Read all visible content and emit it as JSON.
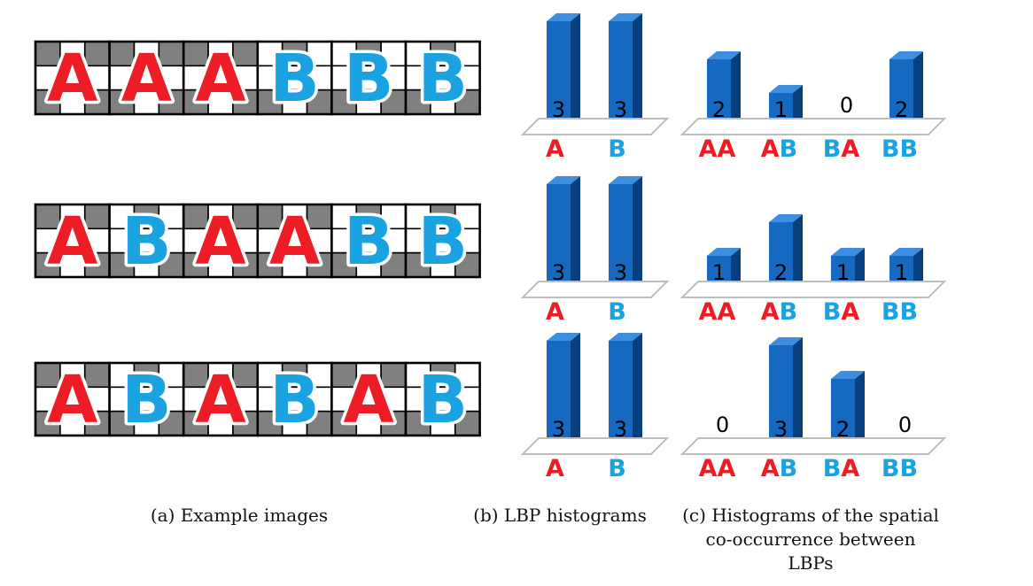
{
  "colors": {
    "A": "#ee1c25",
    "B": "#1aa3e0",
    "bar_front": "#1569c0",
    "bar_side": "#0a3f7e",
    "bar_top": "#3d8ee0",
    "cell_dark": "#808080",
    "cell_light": "#ffffff"
  },
  "rows": [
    {
      "sequence": [
        "A",
        "A",
        "A",
        "B",
        "B",
        "B"
      ],
      "lbp_histogram": {
        "categories": [
          "A",
          "B"
        ],
        "values": [
          3,
          3
        ]
      },
      "cooccurrence_histogram": {
        "categories": [
          "AA",
          "AB",
          "BA",
          "BB"
        ],
        "values": [
          2,
          1,
          0,
          2
        ]
      }
    },
    {
      "sequence": [
        "A",
        "B",
        "A",
        "A",
        "B",
        "B"
      ],
      "lbp_histogram": {
        "categories": [
          "A",
          "B"
        ],
        "values": [
          3,
          3
        ]
      },
      "cooccurrence_histogram": {
        "categories": [
          "AA",
          "AB",
          "BA",
          "BB"
        ],
        "values": [
          1,
          2,
          1,
          1
        ]
      }
    },
    {
      "sequence": [
        "A",
        "B",
        "A",
        "B",
        "A",
        "B"
      ],
      "lbp_histogram": {
        "categories": [
          "A",
          "B"
        ],
        "values": [
          3,
          3
        ]
      },
      "cooccurrence_histogram": {
        "categories": [
          "AA",
          "AB",
          "BA",
          "BB"
        ],
        "values": [
          0,
          3,
          2,
          0
        ]
      }
    }
  ],
  "captions": {
    "a": "(a) Example images",
    "b": "(b) LBP histograms",
    "c": "(c) Histograms of the spatial co-occurrence between LBPs"
  }
}
